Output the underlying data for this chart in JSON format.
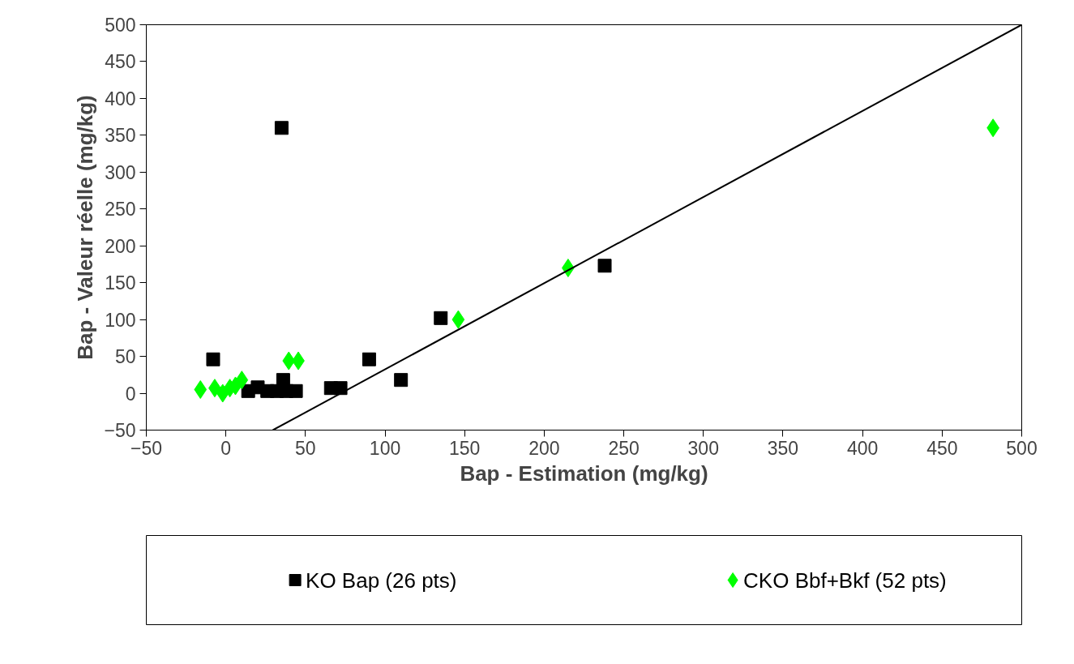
{
  "chart_data": {
    "type": "scatter",
    "xlabel": "Bap - Estimation (mg/kg)",
    "ylabel": "Bap - Valeur réelle (mg/kg)",
    "xlim": [
      -50,
      500
    ],
    "ylim": [
      -50,
      500
    ],
    "xticks": [
      -50,
      0,
      50,
      100,
      150,
      200,
      250,
      300,
      350,
      400,
      450,
      500
    ],
    "yticks": [
      -50,
      0,
      50,
      100,
      150,
      200,
      250,
      300,
      350,
      400,
      450,
      500
    ],
    "grid": false,
    "legend": "bottom",
    "series": [
      {
        "name": "KO Bap (26 pts)",
        "color": "#000000",
        "marker": "square",
        "x": [
          -8,
          35,
          90,
          110,
          135,
          238,
          66,
          72,
          14,
          20,
          26,
          32,
          36,
          38,
          44
        ],
        "values": [
          46,
          360,
          46,
          18,
          102,
          173,
          7,
          7,
          3,
          8,
          3,
          3,
          18,
          3,
          3
        ]
      },
      {
        "name": "CKO Bbf+Bkf (52 pts)",
        "color": "#00ff00",
        "marker": "diamond",
        "x": [
          -16,
          -7,
          -2,
          2.5,
          6,
          10,
          39.5,
          45.5,
          146,
          215,
          482
        ],
        "values": [
          5,
          7,
          0,
          7,
          10,
          18,
          44,
          44,
          100,
          170,
          360
        ]
      },
      {
        "type": "line",
        "color": "#000000",
        "x": [
          29.5,
          500
        ],
        "values": [
          -50,
          500
        ]
      }
    ]
  }
}
